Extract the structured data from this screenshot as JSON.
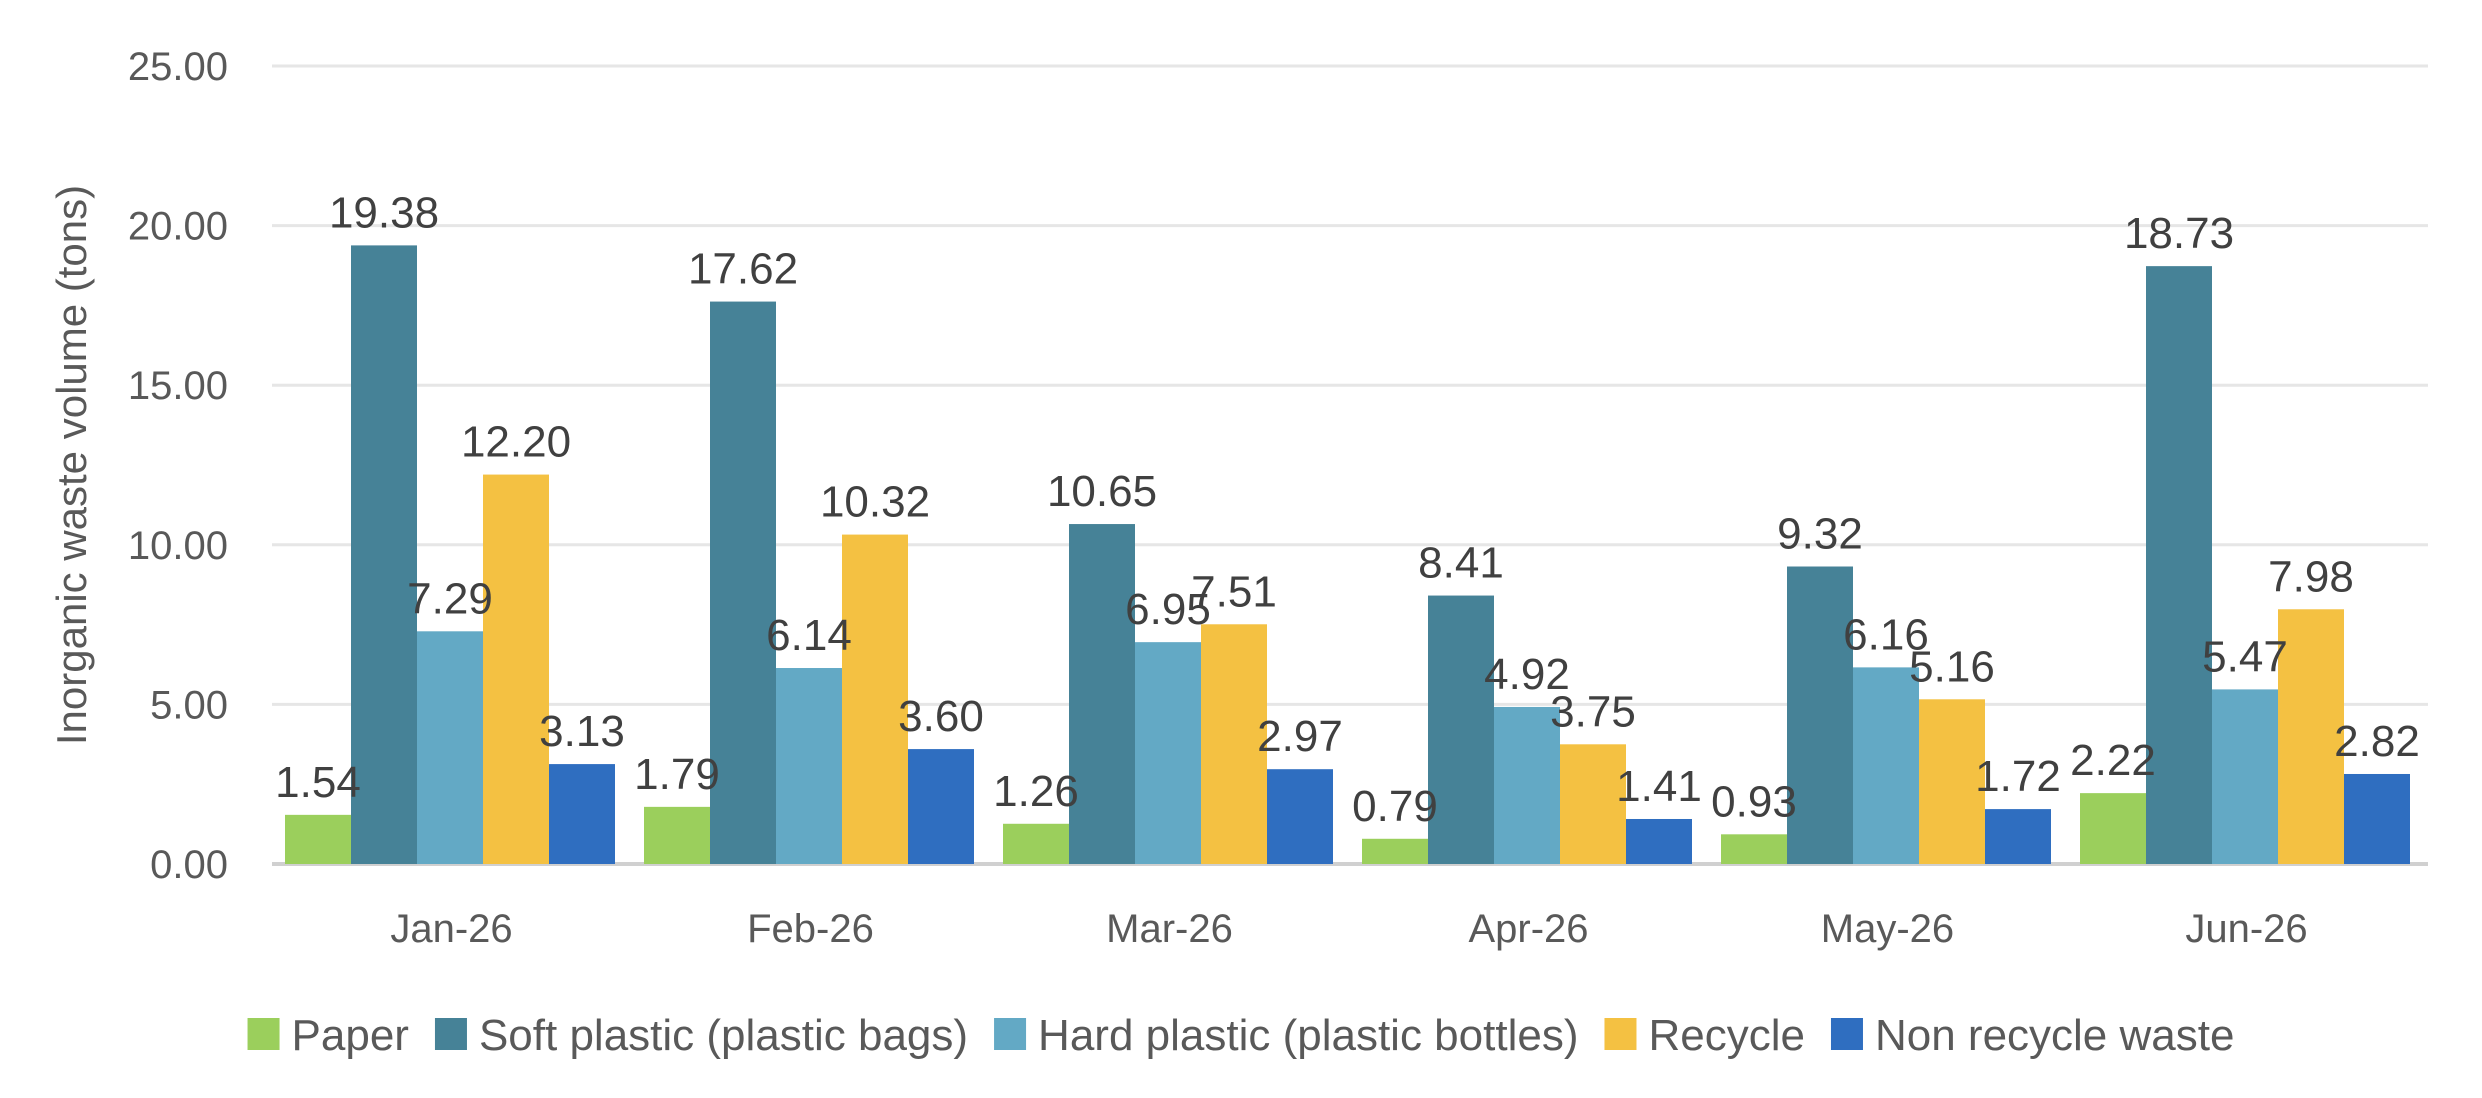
{
  "chart_data": {
    "type": "bar",
    "title": "",
    "xlabel": "",
    "ylabel": "Inorganic waste volume (tons)",
    "ylim": [
      0,
      25
    ],
    "yticks": [
      "0.00",
      "5.00",
      "10.00",
      "15.00",
      "20.00",
      "25.00"
    ],
    "grid": true,
    "legend_position": "bottom",
    "categories": [
      "Jan-26",
      "Feb-26",
      "Mar-26",
      "Apr-26",
      "May-26",
      "Jun-26"
    ],
    "series": [
      {
        "name": "Paper",
        "color": "#9BCF5C",
        "values": [
          1.54,
          1.79,
          1.26,
          0.79,
          0.93,
          2.22
        ],
        "labels": [
          "1.54",
          "1.79",
          "1.26",
          "0.79",
          "0.93",
          "2.22"
        ]
      },
      {
        "name": "Soft plastic (plastic bags)",
        "color": "#468297",
        "values": [
          19.38,
          17.62,
          10.65,
          8.41,
          9.32,
          18.73
        ],
        "labels": [
          "19.38",
          "17.62",
          "10.65",
          "8.41",
          "9.32",
          "18.73"
        ]
      },
      {
        "name": "Hard plastic (plastic bottles)",
        "color": "#63A9C5",
        "values": [
          7.29,
          6.14,
          6.95,
          4.92,
          6.16,
          5.47
        ],
        "labels": [
          "7.29",
          "6.14",
          "6.95",
          "4.92",
          "6.16",
          "5.47"
        ]
      },
      {
        "name": "Recycle",
        "color": "#F4C142",
        "values": [
          12.2,
          10.32,
          7.51,
          3.75,
          5.16,
          7.98
        ],
        "labels": [
          "12.20",
          "10.32",
          "7.51",
          "3.75",
          "5.16",
          "7.98"
        ]
      },
      {
        "name": "Non recycle waste",
        "color": "#2F6EC0",
        "values": [
          3.13,
          3.6,
          2.97,
          1.41,
          1.72,
          2.82
        ],
        "labels": [
          "3.13",
          "3.60",
          "2.97",
          "1.41",
          "1.72",
          "2.82"
        ]
      }
    ]
  }
}
